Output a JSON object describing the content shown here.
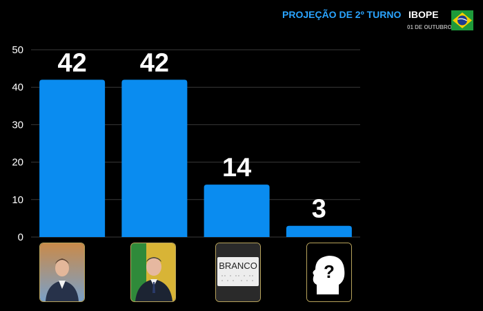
{
  "header": {
    "title": "PROJEÇÃO DE 2º TURNO",
    "source": "IBOPE",
    "date": "01 DE OUTUBRO",
    "flag_icon": "brazil-flag-icon"
  },
  "colors": {
    "bar": "#0a8cf0",
    "accent": "#2aa4ff",
    "grid": "#3a3a3a",
    "background": "#000000"
  },
  "chart_data": {
    "type": "bar",
    "categories": [
      "candidate-1",
      "candidate-2",
      "BRANCO",
      "?"
    ],
    "values": [
      42,
      42,
      14,
      3
    ],
    "value_labels": [
      "42",
      "42",
      "14",
      "3"
    ],
    "yticks": [
      "0",
      "10",
      "20",
      "30",
      "40",
      "50"
    ],
    "ylim": [
      0,
      50
    ],
    "grid": true,
    "title": "PROJEÇÃO DE 2º TURNO",
    "xlabel": "",
    "ylabel": ""
  },
  "candidates": [
    {
      "icon": "candidate-1-photo"
    },
    {
      "icon": "candidate-2-photo"
    },
    {
      "label": "BRANCO",
      "icon": "blank-vote-icon"
    },
    {
      "label": "?",
      "icon": "undecided-head-icon"
    }
  ]
}
